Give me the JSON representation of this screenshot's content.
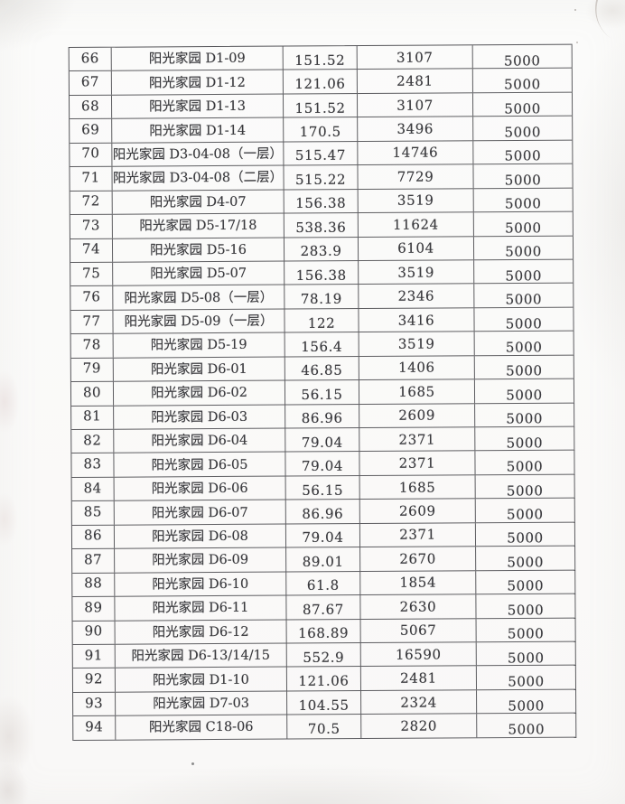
{
  "colors": {
    "ink": "#3a3a3e",
    "grid_line": "#424246",
    "paper": "#fbfbfa"
  },
  "table": {
    "rows": [
      {
        "cells": [
          "66",
          "阳光家园 D1-09",
          "151.52",
          "3107",
          "5000"
        ]
      },
      {
        "cells": [
          "67",
          "阳光家园 D1-12",
          "121.06",
          "2481",
          "5000"
        ]
      },
      {
        "cells": [
          "68",
          "阳光家园 D1-13",
          "151.52",
          "3107",
          "5000"
        ]
      },
      {
        "cells": [
          "69",
          "阳光家园 D1-14",
          "170.5",
          "3496",
          "5000"
        ]
      },
      {
        "cells": [
          "70",
          "阳光家园 D3-04-08（一层）",
          "515.47",
          "14746",
          "5000"
        ]
      },
      {
        "cells": [
          "71",
          "阳光家园 D3-04-08（二层）",
          "515.22",
          "7729",
          "5000"
        ]
      },
      {
        "cells": [
          "72",
          "阳光家园 D4-07",
          "156.38",
          "3519",
          "5000"
        ]
      },
      {
        "cells": [
          "73",
          "阳光家园 D5-17/18",
          "538.36",
          "11624",
          "5000"
        ]
      },
      {
        "cells": [
          "74",
          "阳光家园 D5-16",
          "283.9",
          "6104",
          "5000"
        ]
      },
      {
        "cells": [
          "75",
          "阳光家园 D5-07",
          "156.38",
          "3519",
          "5000"
        ]
      },
      {
        "cells": [
          "76",
          "阳光家园 D5-08（一层）",
          "78.19",
          "2346",
          "5000"
        ]
      },
      {
        "cells": [
          "77",
          "阳光家园 D5-09（一层）",
          "122",
          "3416",
          "5000"
        ]
      },
      {
        "cells": [
          "78",
          "阳光家园 D5-19",
          "156.4",
          "3519",
          "5000"
        ]
      },
      {
        "cells": [
          "79",
          "阳光家园 D6-01",
          "46.85",
          "1406",
          "5000"
        ]
      },
      {
        "cells": [
          "80",
          "阳光家园 D6-02",
          "56.15",
          "1685",
          "5000"
        ]
      },
      {
        "cells": [
          "81",
          "阳光家园 D6-03",
          "86.96",
          "2609",
          "5000"
        ]
      },
      {
        "cells": [
          "82",
          "阳光家园 D6-04",
          "79.04",
          "2371",
          "5000"
        ]
      },
      {
        "cells": [
          "83",
          "阳光家园 D6-05",
          "79.04",
          "2371",
          "5000"
        ]
      },
      {
        "cells": [
          "84",
          "阳光家园 D6-06",
          "56.15",
          "1685",
          "5000"
        ]
      },
      {
        "cells": [
          "85",
          "阳光家园 D6-07",
          "86.96",
          "2609",
          "5000"
        ]
      },
      {
        "cells": [
          "86",
          "阳光家园 D6-08",
          "79.04",
          "2371",
          "5000"
        ]
      },
      {
        "cells": [
          "87",
          "阳光家园 D6-09",
          "89.01",
          "2670",
          "5000"
        ]
      },
      {
        "cells": [
          "88",
          "阳光家园 D6-10",
          "61.8",
          "1854",
          "5000"
        ]
      },
      {
        "cells": [
          "89",
          "阳光家园 D6-11",
          "87.67",
          "2630",
          "5000"
        ]
      },
      {
        "cells": [
          "90",
          "阳光家园 D6-12",
          "168.89",
          "5067",
          "5000"
        ]
      },
      {
        "cells": [
          "91",
          "阳光家园 D6-13/14/15",
          "552.9",
          "16590",
          "5000"
        ]
      },
      {
        "cells": [
          "92",
          "阳光家园 D1-10",
          "121.06",
          "2481",
          "5000"
        ]
      },
      {
        "cells": [
          "93",
          "阳光家园 D7-03",
          "104.55",
          "2324",
          "5000"
        ]
      },
      {
        "cells": [
          "94",
          "阳光家园 C18-06",
          "70.5",
          "2820",
          "5000"
        ]
      }
    ]
  }
}
